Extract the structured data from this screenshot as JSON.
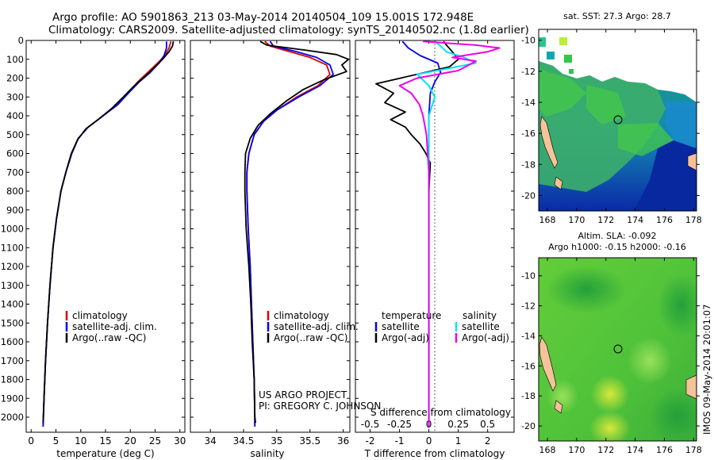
{
  "header": {
    "line1": "Argo profile: AO 5901863_213 03-May-2014 20140504_109 15.001S 172.948E",
    "line2": "Climatology: CARS2009. Satellite-adjusted climatology: synTS_20140502.nc (1.8d earlier)"
  },
  "credit": {
    "line1": "US ARGO PROJECT",
    "line2": "PI: GREGORY C. JOHNSON"
  },
  "timestamp": "IMOS 09-May-2014 20:01:07",
  "colors": {
    "climatology": "#dd0000",
    "satellite": "#0000ee",
    "argo": "#000000",
    "satellite_s": "#00e5ee",
    "argo_s": "#ee00ee"
  },
  "chart_data": [
    {
      "type": "line",
      "name": "temperature-profile",
      "xlabel": "temperature (deg C)",
      "ylabel": "",
      "xlim": [
        -1,
        31
      ],
      "ylim": [
        2080,
        0
      ],
      "xticks": [
        0,
        5,
        10,
        15,
        20,
        25,
        30
      ],
      "yticks": [
        0,
        100,
        200,
        300,
        400,
        500,
        600,
        700,
        800,
        900,
        1000,
        1100,
        1200,
        1300,
        1400,
        1500,
        1600,
        1700,
        1800,
        1900,
        2000
      ],
      "legend": [
        "climatology",
        "satellite-adj. clim.",
        "Argo(..raw -QC)"
      ],
      "series": [
        {
          "name": "climatology",
          "color": "#dd0000",
          "points": [
            [
              28.2,
              5
            ],
            [
              27.8,
              40
            ],
            [
              27.0,
              80
            ],
            [
              25.5,
              120
            ],
            [
              23.5,
              170
            ],
            [
              21.5,
              220
            ],
            [
              19.5,
              280
            ],
            [
              17.5,
              340
            ],
            [
              14.5,
              400
            ],
            [
              11.5,
              460
            ],
            [
              9.5,
              520
            ],
            [
              8.2,
              600
            ],
            [
              7.0,
              700
            ],
            [
              6.0,
              800
            ],
            [
              5.1,
              950
            ],
            [
              4.4,
              1100
            ],
            [
              3.8,
              1300
            ],
            [
              3.3,
              1500
            ],
            [
              2.9,
              1700
            ],
            [
              2.6,
              1900
            ],
            [
              2.4,
              2050
            ]
          ]
        },
        {
          "name": "satellite-adj. clim.",
          "color": "#0000ee",
          "points": [
            [
              27.3,
              5
            ],
            [
              27.3,
              40
            ],
            [
              26.8,
              80
            ],
            [
              25.8,
              120
            ],
            [
              24.0,
              170
            ],
            [
              21.8,
              220
            ],
            [
              19.6,
              280
            ],
            [
              17.5,
              340
            ],
            [
              14.5,
              400
            ],
            [
              11.5,
              460
            ],
            [
              9.5,
              520
            ],
            [
              8.2,
              600
            ],
            [
              7.0,
              700
            ],
            [
              6.0,
              800
            ],
            [
              5.1,
              950
            ],
            [
              4.4,
              1100
            ],
            [
              3.8,
              1300
            ],
            [
              3.3,
              1500
            ],
            [
              2.9,
              1700
            ],
            [
              2.6,
              1900
            ],
            [
              2.4,
              2050
            ]
          ]
        },
        {
          "name": "Argo(..raw -QC)",
          "color": "#000000",
          "points": [
            [
              28.7,
              5
            ],
            [
              28.5,
              30
            ],
            [
              27.8,
              60
            ],
            [
              26.5,
              100
            ],
            [
              25.0,
              140
            ],
            [
              23.0,
              190
            ],
            [
              20.8,
              240
            ],
            [
              18.6,
              300
            ],
            [
              16.3,
              360
            ],
            [
              13.5,
              420
            ],
            [
              11.0,
              470
            ],
            [
              9.3,
              530
            ],
            [
              8.1,
              600
            ],
            [
              7.0,
              700
            ],
            [
              6.0,
              800
            ],
            [
              5.1,
              950
            ],
            [
              4.4,
              1100
            ],
            [
              3.8,
              1300
            ],
            [
              3.3,
              1500
            ],
            [
              2.9,
              1700
            ],
            [
              2.6,
              1900
            ],
            [
              2.4,
              2030
            ]
          ]
        }
      ]
    },
    {
      "type": "line",
      "name": "salinity-profile",
      "xlabel": "salinity",
      "ylabel": "",
      "xlim": [
        33.7,
        36.1
      ],
      "ylim": [
        2080,
        0
      ],
      "xticks": [
        34,
        34.5,
        35,
        35.5,
        36
      ],
      "xticklabels": [
        "34",
        "34.5",
        "35",
        "35.5",
        "36"
      ],
      "legend": [
        "climatology",
        "satellite-adj. clim.",
        "Argo(..raw -QC)"
      ],
      "series": [
        {
          "name": "climatology",
          "color": "#dd0000",
          "points": [
            [
              34.82,
              5
            ],
            [
              34.9,
              30
            ],
            [
              35.2,
              60
            ],
            [
              35.5,
              90
            ],
            [
              35.75,
              130
            ],
            [
              35.8,
              180
            ],
            [
              35.62,
              240
            ],
            [
              35.3,
              300
            ],
            [
              35.0,
              370
            ],
            [
              34.8,
              430
            ],
            [
              34.66,
              500
            ],
            [
              34.58,
              600
            ],
            [
              34.55,
              700
            ],
            [
              34.55,
              800
            ],
            [
              34.57,
              1000
            ],
            [
              34.6,
              1200
            ],
            [
              34.62,
              1400
            ],
            [
              34.64,
              1600
            ],
            [
              34.66,
              1800
            ],
            [
              34.67,
              2000
            ],
            [
              34.67,
              2050
            ]
          ]
        },
        {
          "name": "satellite-adj. clim.",
          "color": "#0000ee",
          "points": [
            [
              34.9,
              5
            ],
            [
              34.95,
              30
            ],
            [
              35.3,
              60
            ],
            [
              35.6,
              90
            ],
            [
              35.8,
              130
            ],
            [
              35.85,
              180
            ],
            [
              35.65,
              240
            ],
            [
              35.33,
              300
            ],
            [
              35.0,
              370
            ],
            [
              34.8,
              430
            ],
            [
              34.66,
              500
            ],
            [
              34.58,
              600
            ],
            [
              34.55,
              700
            ],
            [
              34.55,
              800
            ],
            [
              34.57,
              1000
            ],
            [
              34.6,
              1200
            ],
            [
              34.62,
              1400
            ],
            [
              34.64,
              1600
            ],
            [
              34.66,
              1800
            ],
            [
              34.67,
              2000
            ],
            [
              34.67,
              2050
            ]
          ]
        },
        {
          "name": "Argo(..raw -QC)",
          "color": "#000000",
          "points": [
            [
              34.75,
              5
            ],
            [
              34.85,
              25
            ],
            [
              35.4,
              50
            ],
            [
              35.9,
              75
            ],
            [
              36.08,
              100
            ],
            [
              35.98,
              130
            ],
            [
              36.05,
              165
            ],
            [
              35.7,
              210
            ],
            [
              35.4,
              260
            ],
            [
              35.15,
              320
            ],
            [
              34.9,
              390
            ],
            [
              34.72,
              450
            ],
            [
              34.6,
              520
            ],
            [
              34.53,
              600
            ],
            [
              34.52,
              700
            ],
            [
              34.52,
              800
            ],
            [
              34.54,
              1000
            ],
            [
              34.58,
              1200
            ],
            [
              34.61,
              1400
            ],
            [
              34.63,
              1600
            ],
            [
              34.66,
              1800
            ],
            [
              34.67,
              2000
            ],
            [
              34.68,
              2030
            ]
          ]
        }
      ]
    },
    {
      "type": "line",
      "name": "difference-profile",
      "xlabel": "T difference from climatology",
      "xlabel2": "S difference from climatology",
      "xlim": [
        -2.5,
        2.9
      ],
      "xlim_s": [
        -0.625,
        0.725
      ],
      "ylim": [
        2080,
        0
      ],
      "xticks": [
        -2,
        -1,
        0,
        1,
        2
      ],
      "xticks_s": [
        -0.5,
        -0.25,
        0,
        0.25,
        0.5
      ],
      "xticklabels_s": [
        "-0.5",
        "-0.25",
        "0",
        "0.25",
        "0.5"
      ],
      "legend_t_title": "temperature",
      "legend_s_title": "salinity",
      "legend_t": [
        "satellite",
        "Argo(-adj)"
      ],
      "legend_s": [
        "satellite",
        "Argo(-adj)"
      ],
      "series": [
        {
          "name": "T satellite",
          "color": "#0000ee",
          "points": [
            [
              -0.9,
              5
            ],
            [
              -0.7,
              40
            ],
            [
              -0.3,
              80
            ],
            [
              0.3,
              120
            ],
            [
              0.4,
              170
            ],
            [
              0.2,
              220
            ],
            [
              0.05,
              280
            ],
            [
              0,
              400
            ],
            [
              0,
              700
            ],
            [
              0,
              2050
            ]
          ]
        },
        {
          "name": "T Argo(-adj)",
          "color": "#000000",
          "points": [
            [
              0.5,
              5
            ],
            [
              0.6,
              25
            ],
            [
              0.8,
              60
            ],
            [
              1.0,
              100
            ],
            [
              0.7,
              140
            ],
            [
              -1.8,
              230
            ],
            [
              -1.2,
              280
            ],
            [
              -1.5,
              330
            ],
            [
              -0.8,
              380
            ],
            [
              -1.3,
              420
            ],
            [
              -0.8,
              460
            ],
            [
              -0.6,
              500
            ],
            [
              -0.3,
              550
            ],
            [
              -0.1,
              600
            ],
            [
              0.05,
              650
            ],
            [
              0,
              800
            ],
            [
              0,
              1000
            ],
            [
              0,
              2050
            ]
          ]
        },
        {
          "name": "S satellite",
          "color": "#00e5ee",
          "points": [
            [
              0.05,
              5
            ],
            [
              0.1,
              30
            ],
            [
              0.15,
              60
            ],
            [
              0.3,
              90
            ],
            [
              0.4,
              120
            ],
            [
              -0.1,
              180
            ],
            [
              0.0,
              240
            ],
            [
              0.05,
              300
            ],
            [
              0.0,
              400
            ],
            [
              0.0,
              700
            ],
            [
              0.0,
              2050
            ]
          ]
        },
        {
          "name": "S Argo(-adj)",
          "color": "#ee00ee",
          "points": [
            [
              -0.05,
              5
            ],
            [
              0.4,
              25
            ],
            [
              0.6,
              40
            ],
            [
              0.5,
              60
            ],
            [
              0.2,
              90
            ],
            [
              0.4,
              110
            ],
            [
              0.25,
              160
            ],
            [
              -0.1,
              200
            ],
            [
              -0.25,
              240
            ],
            [
              -0.15,
              280
            ],
            [
              -0.08,
              340
            ],
            [
              -0.05,
              400
            ],
            [
              -0.02,
              500
            ],
            [
              0,
              700
            ],
            [
              0,
              2000
            ],
            [
              0,
              2050
            ]
          ]
        }
      ]
    },
    {
      "type": "heatmap",
      "name": "sst-map",
      "title": "sat. SST: 27.3 Argo: 28.7",
      "xlim": [
        167.4,
        178.2
      ],
      "ylim": [
        -21,
        -9.3
      ],
      "xticks": [
        168,
        170,
        172,
        174,
        176,
        178
      ],
      "yticks": [
        -10,
        -12,
        -14,
        -16,
        -18,
        -20
      ],
      "argo_position": [
        172.948,
        -15.001
      ]
    },
    {
      "type": "heatmap",
      "name": "sla-map",
      "title": "Altim. SLA: -0.092",
      "subtitle": "Argo h1000: -0.15 h2000: -0.16",
      "xlim": [
        167.4,
        178.2
      ],
      "ylim": [
        -21,
        -8.8
      ],
      "xticks": [
        168,
        170,
        172,
        174,
        176,
        178
      ],
      "yticks": [
        -10,
        -12,
        -14,
        -16,
        -18,
        -20
      ],
      "argo_position": [
        172.948,
        -15.001
      ]
    }
  ]
}
